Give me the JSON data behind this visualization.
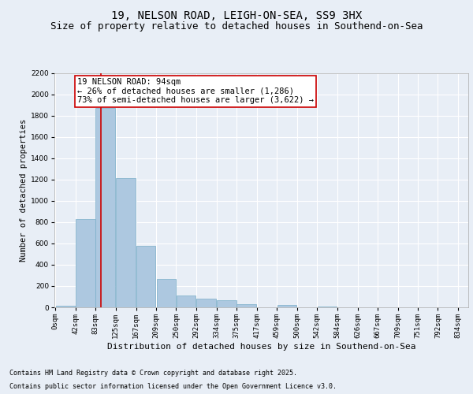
{
  "title1": "19, NELSON ROAD, LEIGH-ON-SEA, SS9 3HX",
  "title2": "Size of property relative to detached houses in Southend-on-Sea",
  "xlabel": "Distribution of detached houses by size in Southend-on-Sea",
  "ylabel": "Number of detached properties",
  "bar_left_edges": [
    0,
    42,
    83,
    125,
    167,
    209,
    250,
    292,
    334,
    375,
    417,
    459,
    500,
    542,
    584,
    626,
    667,
    709,
    751,
    792
  ],
  "bar_heights": [
    15,
    830,
    1870,
    1210,
    580,
    265,
    112,
    80,
    70,
    32,
    0,
    25,
    0,
    10,
    0,
    0,
    0,
    0,
    0,
    0
  ],
  "bin_width": 41,
  "bar_color": "#adc8e0",
  "bar_edge_color": "#7aaec8",
  "background_color": "#e8eef6",
  "grid_color": "#ffffff",
  "vline_x": 94,
  "vline_color": "#cc0000",
  "annotation_text": "19 NELSON ROAD: 94sqm\n← 26% of detached houses are smaller (1,286)\n73% of semi-detached houses are larger (3,622) →",
  "annotation_box_color": "#ffffff",
  "annotation_box_edge": "#cc0000",
  "ylim": [
    0,
    2200
  ],
  "yticks": [
    0,
    200,
    400,
    600,
    800,
    1000,
    1200,
    1400,
    1600,
    1800,
    2000,
    2200
  ],
  "tick_labels": [
    "0sqm",
    "42sqm",
    "83sqm",
    "125sqm",
    "167sqm",
    "209sqm",
    "250sqm",
    "292sqm",
    "334sqm",
    "375sqm",
    "417sqm",
    "459sqm",
    "500sqm",
    "542sqm",
    "584sqm",
    "626sqm",
    "667sqm",
    "709sqm",
    "751sqm",
    "792sqm",
    "834sqm"
  ],
  "footnote1": "Contains HM Land Registry data © Crown copyright and database right 2025.",
  "footnote2": "Contains public sector information licensed under the Open Government Licence v3.0.",
  "title1_fontsize": 10,
  "title2_fontsize": 9,
  "xlabel_fontsize": 8,
  "ylabel_fontsize": 7.5,
  "tick_fontsize": 6.5,
  "annotation_fontsize": 7.5,
  "footnote_fontsize": 6
}
